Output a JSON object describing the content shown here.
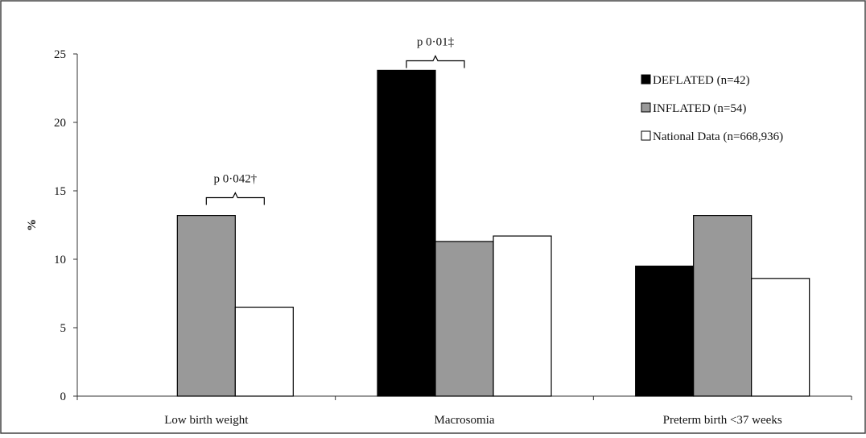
{
  "chart_data": {
    "type": "bar",
    "title": "",
    "xlabel": "",
    "ylabel": "%",
    "ylim": [
      0,
      25
    ],
    "yticks": [
      0,
      5,
      10,
      15,
      20,
      25
    ],
    "categories": [
      "Low birth weight",
      "Macrosomia",
      "Preterm birth <37 weeks"
    ],
    "series": [
      {
        "name": "DEFLATED (n=42)",
        "color": "#000000",
        "values": [
          0,
          23.8,
          9.5
        ]
      },
      {
        "name": "INFLATED (n=54)",
        "color": "#999999",
        "values": [
          13.2,
          11.3,
          13.2
        ]
      },
      {
        "name": "National Data (n=668,936)",
        "color": "#ffffff",
        "values": [
          6.5,
          11.7,
          8.6
        ]
      }
    ],
    "legend_position": "top-right",
    "grid": false,
    "annotations": [
      {
        "text": "p 0·042†",
        "category": "Low birth weight",
        "from_series": 1,
        "to_series": 2,
        "level": 14.5
      },
      {
        "text": "p 0·01‡",
        "category": "Macrosomia",
        "from_series": 0,
        "to_series": 1,
        "level": 24.5
      }
    ]
  }
}
